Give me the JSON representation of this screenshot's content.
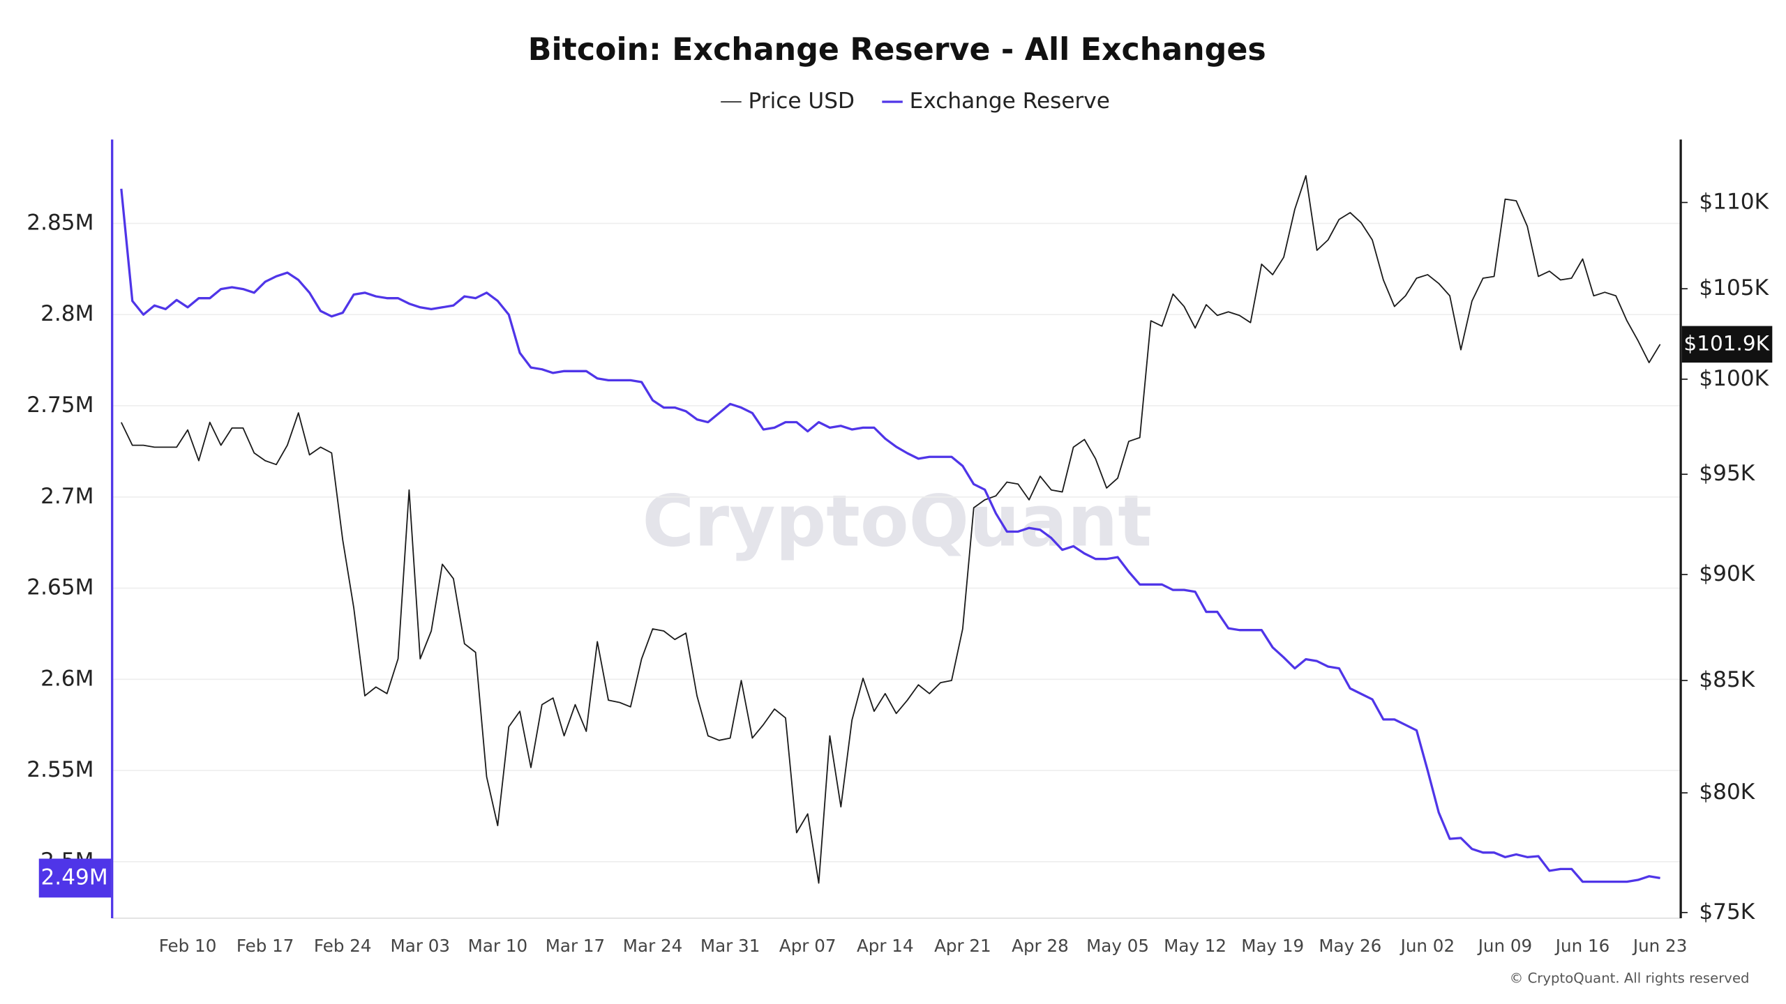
{
  "chart_data": {
    "type": "line",
    "title": "Bitcoin: Exchange Reserve - All Exchanges",
    "watermark": "CryptoQuant",
    "credit": "© CryptoQuant. All rights reserved",
    "categories": [
      null,
      null,
      null,
      null,
      null,
      null,
      "Feb 10",
      null,
      null,
      null,
      null,
      null,
      null,
      "Feb 17",
      null,
      null,
      null,
      null,
      null,
      null,
      "Feb 24",
      null,
      null,
      null,
      null,
      null,
      null,
      "Mar 03",
      null,
      null,
      null,
      null,
      null,
      null,
      "Mar 10",
      null,
      null,
      null,
      null,
      null,
      null,
      "Mar 17",
      null,
      null,
      null,
      null,
      null,
      null,
      "Mar 24",
      null,
      null,
      null,
      null,
      null,
      null,
      "Mar 31",
      null,
      null,
      null,
      null,
      null,
      null,
      "Apr 07",
      null,
      null,
      null,
      null,
      null,
      null,
      "Apr 14",
      null,
      null,
      null,
      null,
      null,
      null,
      "Apr 21",
      null,
      null,
      null,
      null,
      null,
      null,
      "Apr 28",
      null,
      null,
      null,
      null,
      null,
      null,
      "May 05",
      null,
      null,
      null,
      null,
      null,
      null,
      "May 12",
      null,
      null,
      null,
      null,
      null,
      null,
      "May 19",
      null,
      null,
      null,
      null,
      null,
      null,
      "May 26",
      null,
      null,
      null,
      null,
      null,
      null,
      "Jun 02",
      null,
      null,
      null,
      null,
      null,
      null,
      "Jun 09",
      null,
      null,
      null,
      null,
      null,
      null,
      "Jun 16",
      null,
      null,
      null,
      null,
      null,
      null,
      "Jun 23"
    ],
    "series": [
      {
        "name": "Price USD",
        "color": "#1a1a1a",
        "axis": "y2",
        "current_label": "$101.9K",
        "values": [
          97700,
          96500,
          96500,
          96400,
          96400,
          96400,
          97300,
          95700,
          97700,
          96500,
          97400,
          97400,
          96100,
          95700,
          95500,
          96500,
          98200,
          96000,
          96400,
          96100,
          91700,
          88400,
          84300,
          84700,
          84400,
          86000,
          94200,
          86000,
          87300,
          90500,
          89800,
          86700,
          86300,
          80700,
          78600,
          82900,
          83600,
          81100,
          83900,
          84200,
          82500,
          83900,
          82700,
          86800,
          84100,
          84000,
          83800,
          86000,
          87400,
          87300,
          86900,
          87200,
          84300,
          82500,
          82300,
          82400,
          85000,
          82400,
          83000,
          83700,
          83300,
          78300,
          79100,
          76200,
          82500,
          79400,
          83200,
          85100,
          83600,
          84400,
          83500,
          84100,
          84800,
          84400,
          84900,
          85000,
          87400,
          93300,
          93700,
          93900,
          94600,
          94500,
          93700,
          94900,
          94200,
          94100,
          96400,
          96800,
          95800,
          94300,
          94800,
          96700,
          96900,
          103200,
          102900,
          104700,
          104000,
          102800,
          104100,
          103500,
          103700,
          103500,
          103100,
          106400,
          105800,
          106800,
          109600,
          111600,
          107200,
          107800,
          109000,
          109400,
          108800,
          107800,
          105500,
          104000,
          104600,
          105600,
          105800,
          105300,
          104600,
          101600,
          104300,
          105600,
          105700,
          110200,
          110100,
          108600,
          105700,
          106000,
          105500,
          105600,
          106700,
          104600,
          104800,
          104600,
          103200,
          102100,
          100900,
          101900
        ]
      },
      {
        "name": "Exchange Reserve",
        "color": "#4f35e8",
        "current_label": "2.49M",
        "values": [
          2869000,
          2807500,
          2800000,
          2805000,
          2803000,
          2808000,
          2804000,
          2809000,
          2809000,
          2814000,
          2815000,
          2814000,
          2812000,
          2818000,
          2821000,
          2823000,
          2819000,
          2812000,
          2802000,
          2799000,
          2801000,
          2811000,
          2812000,
          2810000,
          2809000,
          2809000,
          2806000,
          2804000,
          2803000,
          2804000,
          2805000,
          2810000,
          2809000,
          2812000,
          2807500,
          2800000,
          2779000,
          2771000,
          2770000,
          2768000,
          2769000,
          2769000,
          2769000,
          2765000,
          2764000,
          2764000,
          2764000,
          2763000,
          2753000,
          2749000,
          2749000,
          2747000,
          2742500,
          2741000,
          2746000,
          2751000,
          2749000,
          2746000,
          2737000,
          2738000,
          2741000,
          2741000,
          2736000,
          2741000,
          2738000,
          2739000,
          2737000,
          2738000,
          2738000,
          2732000,
          2727500,
          2724000,
          2721000,
          2722000,
          2722000,
          2722000,
          2717000,
          2707000,
          2704000,
          2691000,
          2681000,
          2681000,
          2683000,
          2682000,
          2677500,
          2671000,
          2673000,
          2669000,
          2666000,
          2666000,
          2667000,
          2659000,
          2652000,
          2652000,
          2652000,
          2649000,
          2649000,
          2648000,
          2637000,
          2637000,
          2628000,
          2627000,
          2627000,
          2627000,
          2617500,
          2612000,
          2606000,
          2611000,
          2610000,
          2607000,
          2606000,
          2595000,
          2592000,
          2589000,
          2578000,
          2578000,
          2575000,
          2572000,
          2550000,
          2527000,
          2512500,
          2513000,
          2507000,
          2505000,
          2505000,
          2502500,
          2504000,
          2502500,
          2503000,
          2495000,
          2496000,
          2496000,
          2489000,
          2489000,
          2489000,
          2489000,
          2489000,
          2490000,
          2492000,
          2491000
        ]
      }
    ],
    "ylim": [
      2469000,
      2896000
    ],
    "yticks": [
      {
        "value": 2500000,
        "label": "2.5M"
      },
      {
        "value": 2550000,
        "label": "2.55M"
      },
      {
        "value": 2600000,
        "label": "2.6M"
      },
      {
        "value": 2650000,
        "label": "2.65M"
      },
      {
        "value": 2700000,
        "label": "2.7M"
      },
      {
        "value": 2750000,
        "label": "2.75M"
      },
      {
        "value": 2800000,
        "label": "2.8M"
      },
      {
        "value": 2850000,
        "label": "2.85M"
      }
    ],
    "y2lim": [
      74770,
      113800
    ],
    "y2log": true,
    "y2ticks": [
      {
        "value": 75000,
        "label": "$75K"
      },
      {
        "value": 80000,
        "label": "$80K"
      },
      {
        "value": 85000,
        "label": "$85K"
      },
      {
        "value": 90000,
        "label": "$90K"
      },
      {
        "value": 95000,
        "label": "$95K"
      },
      {
        "value": 100000,
        "label": "$100K"
      },
      {
        "value": 105000,
        "label": "$105K"
      },
      {
        "value": 110000,
        "label": "$110K"
      }
    ],
    "grid": true
  }
}
